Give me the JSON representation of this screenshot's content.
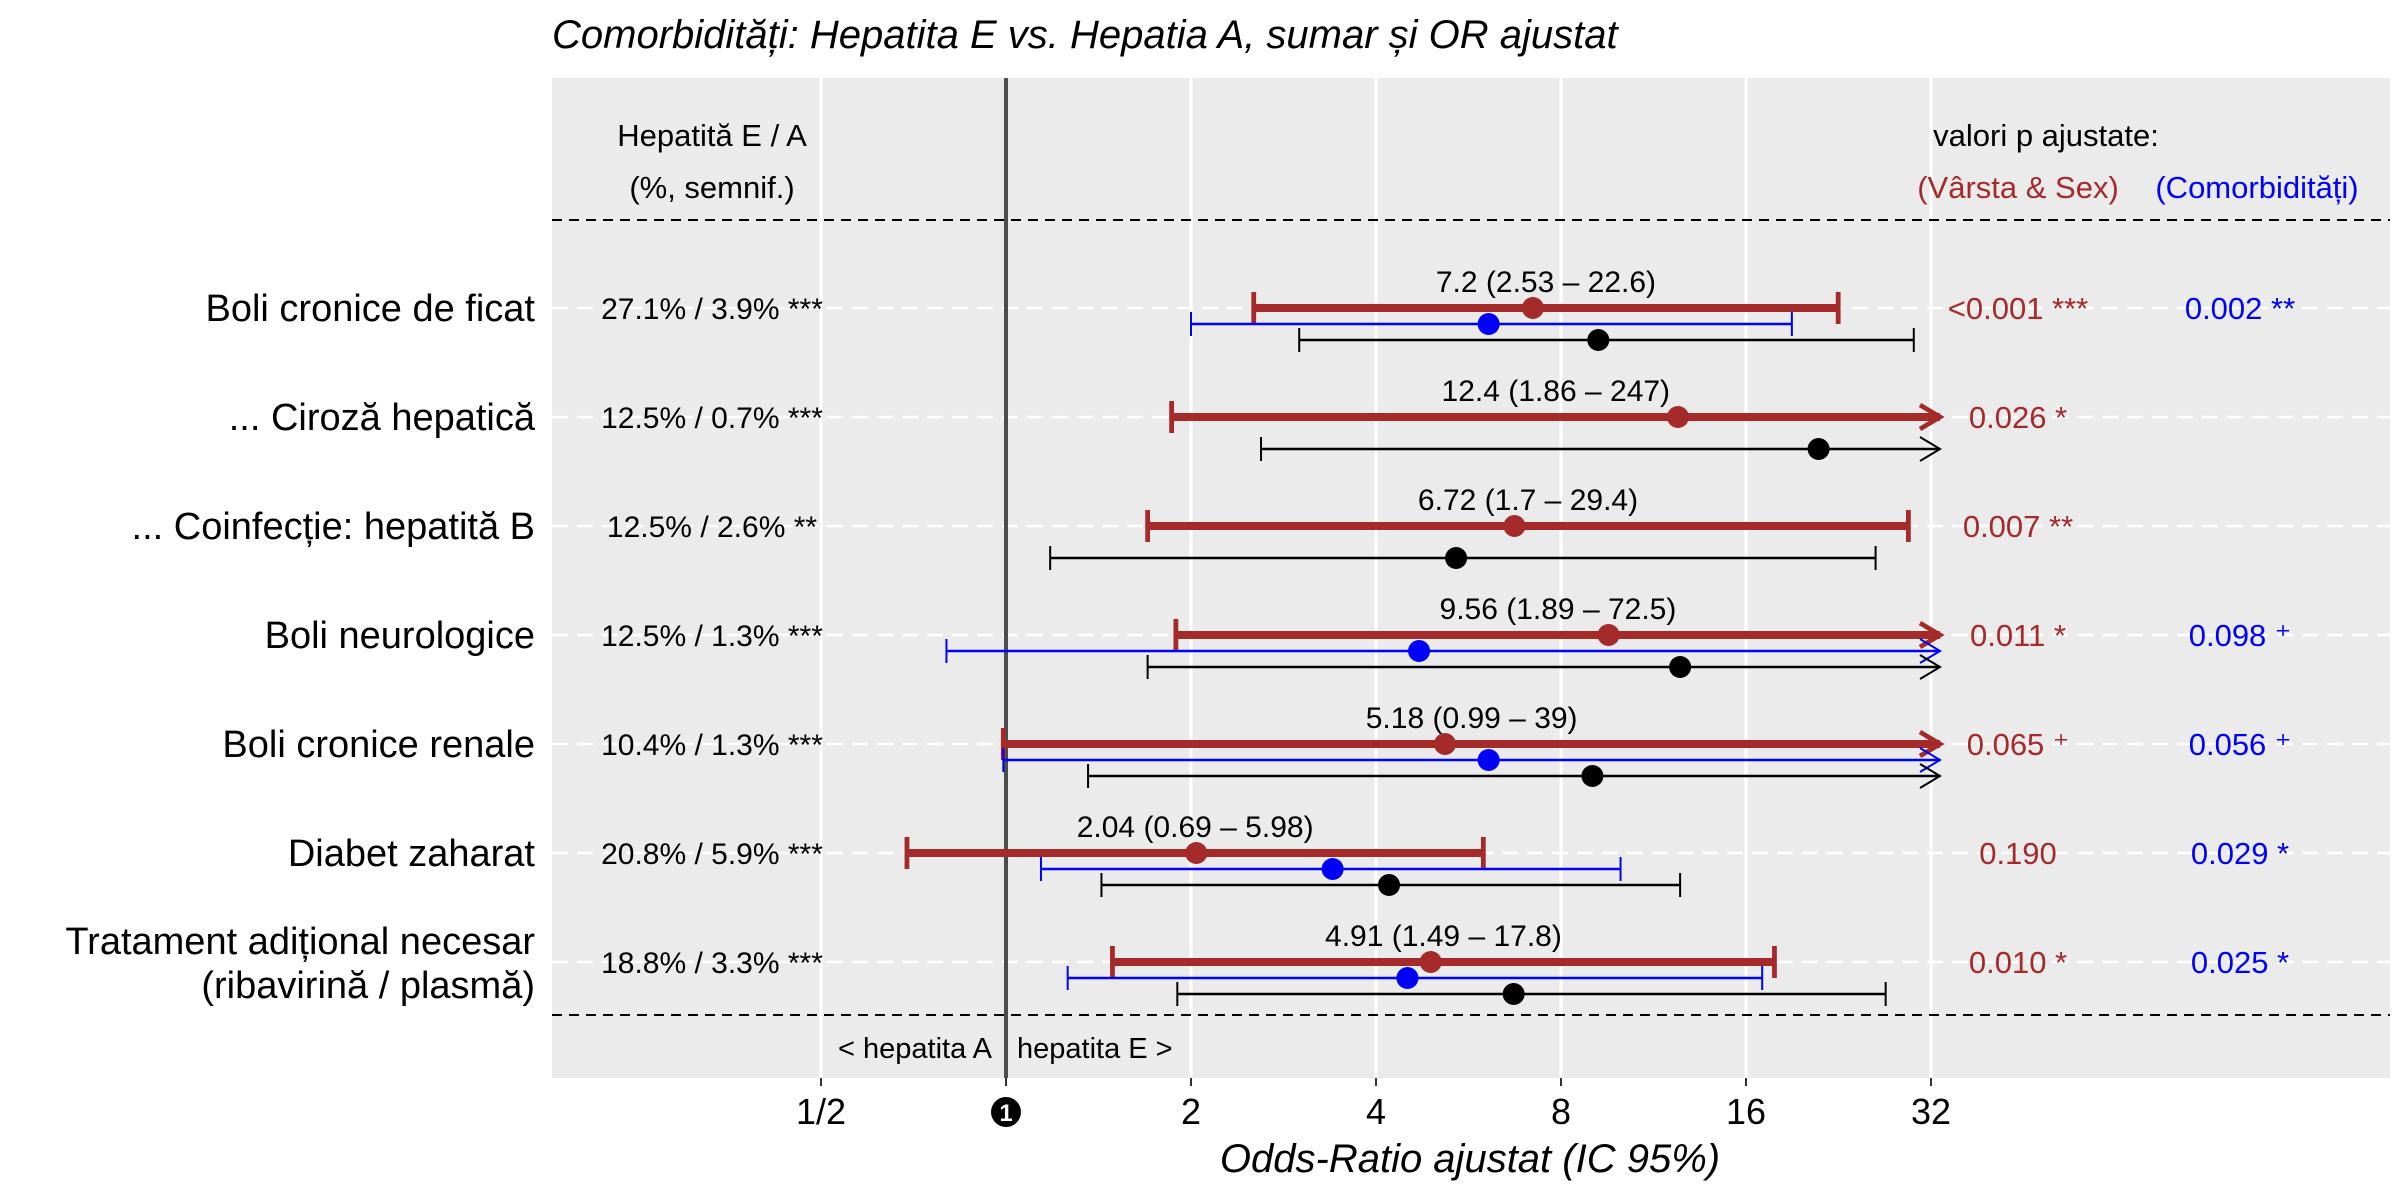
{
  "chart_data": {
    "type": "forest",
    "title": "Comorbidități: Hepatita E vs. Hepatia A, sumar și OR ajustat",
    "xlabel": "Odds-Ratio ajustat (IC 95%)",
    "x_scale": "log2",
    "xlim": [
      0.3,
      90
    ],
    "x_ticks": [
      {
        "value": 0.5,
        "label": "1/2"
      },
      {
        "value": 1,
        "label": "❶"
      },
      {
        "value": 2,
        "label": "2"
      },
      {
        "value": 4,
        "label": "4"
      },
      {
        "value": 8,
        "label": "8"
      },
      {
        "value": 16,
        "label": "16"
      },
      {
        "value": 32,
        "label": "32"
      }
    ],
    "grid": true,
    "left_header": {
      "line1": "Hepatită E / A",
      "line2": "(%, semnif.)"
    },
    "right_header": {
      "line1": "valori p ajustate:",
      "red": "(Vârsta & Sex)",
      "blue": "(Comorbidități)"
    },
    "direction_labels": {
      "left": "< hepatita A",
      "right": "hepatita E >"
    },
    "series": [
      {
        "key": "age_sex",
        "color": "#A52A2A"
      },
      {
        "key": "comorb",
        "color": "#0000FF"
      },
      {
        "key": "crude",
        "color": "#000000"
      }
    ],
    "rows": [
      {
        "label": [
          "Boli cronice de ficat"
        ],
        "percent": "27.1% / 3.9% ***",
        "or_label": "7.2  (2.53 – 22.6)",
        "age_sex": {
          "or": 7.2,
          "lo": 2.53,
          "hi": 22.6
        },
        "comorb": {
          "or": 6.1,
          "lo": 2.0,
          "hi": 19.0
        },
        "crude": {
          "or": 9.2,
          "lo": 3.0,
          "hi": 30.0
        },
        "p_red": "<0.001 ***",
        "p_blue": "0.002 **"
      },
      {
        "label": [
          "... Ciroză hepatică"
        ],
        "percent": "12.5% / 0.7% ***",
        "or_label": "12.4  (1.86 – 247)",
        "age_sex": {
          "or": 12.4,
          "lo": 1.86,
          "hi": 247
        },
        "comorb": null,
        "crude": {
          "or": 21.0,
          "lo": 2.6,
          "hi": 300
        },
        "p_red": "0.026 *",
        "p_blue": ""
      },
      {
        "label": [
          "... Coinfecție: hepatită B"
        ],
        "percent": "12.5% / 2.6% **",
        "or_label": "6.72  (1.7 – 29.4)",
        "age_sex": {
          "or": 6.72,
          "lo": 1.7,
          "hi": 29.4
        },
        "comorb": null,
        "crude": {
          "or": 5.4,
          "lo": 1.18,
          "hi": 26.0
        },
        "p_red": "0.007 **",
        "p_blue": ""
      },
      {
        "label": [
          "Boli neurologice"
        ],
        "percent": "12.5% / 1.3% ***",
        "or_label": "9.56  (1.89 – 72.5)",
        "age_sex": {
          "or": 9.56,
          "lo": 1.89,
          "hi": 72.5
        },
        "comorb": {
          "or": 4.7,
          "lo": 0.8,
          "hi": 200
        },
        "crude": {
          "or": 12.5,
          "lo": 1.7,
          "hi": 250
        },
        "p_red": "0.011 *",
        "p_blue": "0.098 ⁺"
      },
      {
        "label": [
          "Boli cronice renale"
        ],
        "percent": "10.4% / 1.3% ***",
        "or_label": "5.18  (0.99 – 39)",
        "age_sex": {
          "or": 5.18,
          "lo": 0.99,
          "hi": 39
        },
        "comorb": {
          "or": 6.1,
          "lo": 0.99,
          "hi": 200
        },
        "crude": {
          "or": 9.0,
          "lo": 1.36,
          "hi": 200
        },
        "p_red": "0.065 ⁺",
        "p_blue": "0.056 ⁺"
      },
      {
        "label": [
          "Diabet zaharat"
        ],
        "percent": "20.8% / 5.9% ***",
        "or_label": "2.04  (0.69 – 5.98)",
        "age_sex": {
          "or": 2.04,
          "lo": 0.69,
          "hi": 5.98
        },
        "comorb": {
          "or": 3.4,
          "lo": 1.14,
          "hi": 10.0
        },
        "crude": {
          "or": 4.2,
          "lo": 1.43,
          "hi": 12.5
        },
        "p_red": "0.190",
        "p_blue": "0.029 *"
      },
      {
        "label": [
          "Tratament adițional necesar",
          "(ribavirină / plasmă)"
        ],
        "percent": "18.8% / 3.3% ***",
        "or_label": "4.91  (1.49 – 17.8)",
        "age_sex": {
          "or": 4.91,
          "lo": 1.49,
          "hi": 17.8
        },
        "comorb": {
          "or": 4.5,
          "lo": 1.26,
          "hi": 17.0
        },
        "crude": {
          "or": 6.7,
          "lo": 1.9,
          "hi": 27.0
        },
        "p_red": "0.010 *",
        "p_blue": "0.025 *"
      }
    ]
  }
}
